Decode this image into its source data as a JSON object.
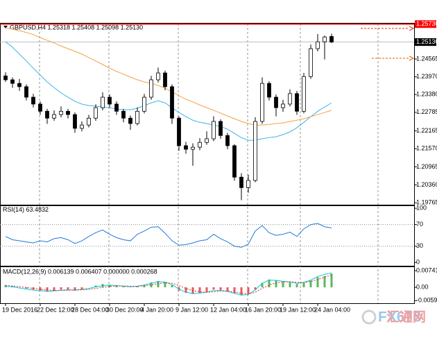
{
  "chart_data": [
    {
      "type": "candlestick",
      "title": "GBPUSD,H4  1.25318 1.25408 1.25098 1.25130",
      "categories": [
        "19 Dec 2016",
        null,
        null,
        null,
        null,
        "22 Dec 12:00",
        null,
        null,
        null,
        null,
        "28 Dec 04:00",
        null,
        null,
        null,
        null,
        "30 Dec 20:00",
        null,
        null,
        null,
        null,
        "4 Jan 20:00",
        null,
        null,
        null,
        null,
        "9 Jan 12:00",
        null,
        null,
        null,
        null,
        "12 Jan 04:00",
        null,
        null,
        null,
        null,
        "16 Jan 20:00",
        null,
        null,
        null,
        null,
        "19 Jan 12:00",
        null,
        null,
        null,
        null,
        "24 Jan 04:00",
        null,
        null
      ],
      "open": [
        1.24,
        1.2387,
        1.2375,
        1.2364,
        1.2329,
        1.2306,
        1.2282,
        1.2259,
        1.2271,
        1.2282,
        1.2271,
        1.2225,
        1.2236,
        1.2259,
        1.2294,
        1.2329,
        1.2306,
        1.2282,
        1.2259,
        1.2241,
        1.2282,
        1.2329,
        1.2387,
        1.241,
        1.2364,
        1.2259,
        1.2167,
        1.2155,
        1.2162,
        1.2178,
        1.219,
        1.2248,
        1.2201,
        1.2167,
        1.2062,
        1.2027,
        1.2051,
        1.2248,
        1.2375,
        1.2329,
        1.2294,
        1.2306,
        1.2341,
        1.2282,
        1.2398,
        1.2491,
        1.2514,
        1.25318
      ],
      "high": [
        1.2412,
        1.2395,
        1.239,
        1.2372,
        1.234,
        1.2315,
        1.229,
        1.2285,
        1.2298,
        1.229,
        1.2278,
        1.2248,
        1.227,
        1.2305,
        1.2345,
        1.2338,
        1.2315,
        1.229,
        1.2268,
        1.2295,
        1.234,
        1.24,
        1.2428,
        1.2418,
        1.2372,
        1.2265,
        1.218,
        1.2175,
        1.2192,
        1.2215,
        1.2265,
        1.2255,
        1.221,
        1.2172,
        1.2075,
        1.207,
        1.2262,
        1.2395,
        1.2382,
        1.2338,
        1.232,
        1.2355,
        1.235,
        1.241,
        1.2505,
        1.254,
        1.2535,
        1.25408
      ],
      "low": [
        1.238,
        1.236,
        1.235,
        1.2318,
        1.2295,
        1.227,
        1.224,
        1.225,
        1.2262,
        1.2258,
        1.221,
        1.2215,
        1.2228,
        1.225,
        1.2285,
        1.2295,
        1.227,
        1.2245,
        1.222,
        1.2235,
        1.2275,
        1.232,
        1.2378,
        1.2352,
        1.224,
        1.215,
        1.214,
        1.21,
        1.2152,
        1.217,
        1.2182,
        1.219,
        1.2155,
        1.205,
        1.1985,
        1.201,
        1.2045,
        1.224,
        1.2318,
        1.2265,
        1.228,
        1.2298,
        1.227,
        1.2275,
        1.239,
        1.2482,
        1.2455,
        1.25098
      ],
      "close": [
        1.2387,
        1.2375,
        1.2364,
        1.2329,
        1.2306,
        1.2282,
        1.2259,
        1.2271,
        1.2282,
        1.2271,
        1.2225,
        1.2236,
        1.2259,
        1.2294,
        1.2329,
        1.2306,
        1.2282,
        1.2259,
        1.2241,
        1.2282,
        1.2329,
        1.2387,
        1.241,
        1.2364,
        1.2259,
        1.2167,
        1.2155,
        1.2162,
        1.2178,
        1.219,
        1.2248,
        1.2201,
        1.2167,
        1.2062,
        1.2027,
        1.2051,
        1.2248,
        1.2375,
        1.2329,
        1.2294,
        1.2306,
        1.2341,
        1.2282,
        1.2398,
        1.2491,
        1.2514,
        1.253,
        1.2513
      ],
      "up_color": "#ffffff",
      "down_color": "#000000",
      "series": [
        {
          "color": "#3cb4e6",
          "values": [
            1.2514,
            1.2496,
            1.2473,
            1.245,
            1.2426,
            1.2403,
            1.238,
            1.2361,
            1.2343,
            1.2329,
            1.2315,
            1.2306,
            1.2301,
            1.2299,
            1.2296,
            1.2294,
            1.2289,
            1.2287,
            1.2287,
            1.2292,
            1.2301,
            1.231,
            1.2317,
            1.231,
            1.2294,
            1.2278,
            1.2264,
            1.2252,
            1.2245,
            1.2241,
            1.2236,
            1.2231,
            1.2222,
            1.2208,
            1.2194,
            1.2185,
            1.2185,
            1.219,
            1.2194,
            1.2197,
            1.2204,
            1.2213,
            1.2227,
            1.2245,
            1.2264,
            1.2282,
            1.2296,
            1.231
          ]
        },
        {
          "color": "#f5a040",
          "values": [
            1.2561,
            1.2556,
            1.2551,
            1.2545,
            1.2538,
            1.2528,
            1.2519,
            1.251,
            1.25,
            1.2491,
            1.2482,
            1.2473,
            1.2461,
            1.245,
            1.2438,
            1.2426,
            1.2415,
            1.2406,
            1.2396,
            1.2387,
            1.238,
            1.2375,
            1.2368,
            1.2359,
            1.2347,
            1.2334,
            1.2322,
            1.2313,
            1.2303,
            1.2294,
            1.2285,
            1.2276,
            1.2266,
            1.2257,
            1.2248,
            1.2241,
            1.2236,
            1.2236,
            1.2238,
            1.2241,
            1.2243,
            1.2248,
            1.2252,
            1.2257,
            1.2264,
            1.2271,
            1.2278,
            1.2285
          ]
        }
      ],
      "ylim": [
        1.197,
        1.2577
      ],
      "yticks": [
        {
          "value": 1.2573,
          "label": "1.25730",
          "style": "alert",
          "color": "#ff0000"
        },
        {
          "value": 1.2513,
          "label": "1.25130",
          "style": "current",
          "color": "#000000"
        },
        1.24565,
        {
          "value": 1.2397,
          "label": "1.23970"
        },
        {
          "value": 1.2338,
          "label": "1.23380"
        },
        1.22785,
        1.22165,
        {
          "value": 1.2157,
          "label": "1.21570"
        },
        1.20965,
        {
          "value": 1.2036,
          "label": "1.20360"
        },
        1.19765
      ],
      "grid": false
    },
    {
      "type": "line",
      "title": "RSI(14)",
      "series": [
        {
          "color": "#1e78dc",
          "values": [
            48,
            42,
            40,
            38,
            36,
            40,
            38,
            44,
            46,
            42,
            35,
            40,
            48,
            55,
            60,
            52,
            46,
            42,
            40,
            52,
            58,
            65,
            66,
            54,
            40,
            32,
            33,
            36,
            40,
            42,
            52,
            44,
            38,
            30,
            28,
            34,
            58,
            68,
            55,
            50,
            52,
            56,
            48,
            62,
            70,
            72,
            66,
            63.4832
          ]
        }
      ],
      "ylim": [
        -6,
        104
      ],
      "yticks": [
        0,
        30,
        70,
        100
      ],
      "levels": [
        30,
        70
      ]
    },
    {
      "type": "combo",
      "title": "MACD(12,26,9) 0.006139 0.006407 0.000000 0.000268",
      "series": [
        {
          "kind": "bar",
          "color": "#22a022",
          "negative_color": "#e02020",
          "values": [
            0.001,
            0.0005,
            0,
            -0.0005,
            -0.001,
            -0.0015,
            -0.002,
            -0.0015,
            -0.001,
            -0.001,
            -0.0015,
            -0.001,
            0,
            0.0008,
            0.0015,
            0.0012,
            0.0008,
            0.0004,
            0,
            0.0006,
            0.0012,
            0.0022,
            0.0028,
            0.0025,
            0.001,
            -0.0015,
            -0.0025,
            -0.003,
            -0.0025,
            -0.002,
            -0.001,
            -0.0012,
            -0.0018,
            -0.0028,
            -0.0035,
            -0.003,
            -0.001,
            0.002,
            0.0035,
            0.003,
            0.0025,
            0.0022,
            0.0015,
            0.002,
            0.003,
            0.0045,
            0.005,
            0.0061
          ]
        },
        {
          "kind": "line",
          "color": "#00c8e0",
          "values": [
            0.0005,
            0.0002,
            -0.0003,
            -0.0008,
            -0.0012,
            -0.0015,
            -0.0018,
            -0.0016,
            -0.0013,
            -0.0011,
            -0.0012,
            -0.001,
            -0.0005,
            0.0002,
            0.0008,
            0.001,
            0.0008,
            0.0005,
            0.0002,
            0.0005,
            0.001,
            0.0018,
            0.0025,
            0.0024,
            0.0012,
            -0.0008,
            -0.0022,
            -0.0028,
            -0.0026,
            -0.0022,
            -0.0014,
            -0.0014,
            -0.0018,
            -0.0027,
            -0.0035,
            -0.0032,
            -0.0012,
            0.0018,
            0.0032,
            0.0031,
            0.0027,
            0.0024,
            0.0018,
            0.0022,
            0.0032,
            0.0048,
            0.0058,
            0.0064
          ]
        },
        {
          "kind": "line",
          "style": "dotted",
          "color": "#e02020",
          "values": [
            0.0008,
            0.0006,
            0.0003,
            -0.0001,
            -0.0005,
            -0.0009,
            -0.0012,
            -0.0014,
            -0.0014,
            -0.0013,
            -0.0012,
            -0.0011,
            -0.0009,
            -0.0005,
            0,
            0.0004,
            0.0006,
            0.0006,
            0.0005,
            0.0005,
            0.0007,
            0.0011,
            0.0016,
            0.002,
            0.0018,
            0.0008,
            -0.0005,
            -0.0015,
            -0.002,
            -0.0022,
            -0.002,
            -0.0017,
            -0.0017,
            -0.0021,
            -0.0027,
            -0.003,
            -0.0022,
            -0.0005,
            0.001,
            0.002,
            0.0024,
            0.0025,
            0.0022,
            0.0022,
            0.0026,
            0.0035,
            0.0045,
            0.0055
          ]
        }
      ],
      "ylim": [
        -0.0071,
        0.009
      ],
      "yticks": [
        0.007419,
        {
          "value": 0,
          "label": "0.00"
        },
        -0.005948
      ]
    }
  ],
  "watermark": {
    "brand": "FX678",
    "name": "汇通网"
  }
}
